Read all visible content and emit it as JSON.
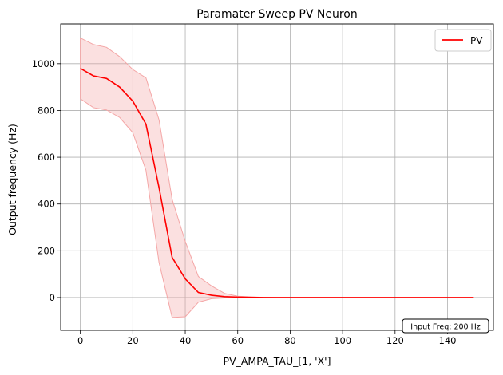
{
  "chart_data": {
    "type": "line",
    "title": "Paramater Sweep PV Neuron",
    "xlabel": "PV_AMPA_TAU_[1, 'X']",
    "ylabel": "Output frequency (Hz)",
    "xlim": [
      -7.5,
      157.5
    ],
    "ylim": [
      -140,
      1170
    ],
    "xticks": [
      0,
      20,
      40,
      60,
      80,
      100,
      120,
      140
    ],
    "yticks": [
      0,
      200,
      400,
      600,
      800,
      1000
    ],
    "grid": true,
    "legend": {
      "position": "top-right"
    },
    "annotation": "Input Freq: 200 Hz",
    "series": [
      {
        "name": "PV",
        "color": "#ff0000",
        "band_color": "#f4a6a6",
        "x": [
          0,
          5,
          10,
          15,
          20,
          25,
          30,
          35,
          40,
          45,
          50,
          55,
          60,
          65,
          70,
          75,
          80,
          85,
          90,
          95,
          100,
          105,
          110,
          115,
          120,
          125,
          130,
          135,
          140,
          145,
          150
        ],
        "y": [
          980,
          948,
          937,
          900,
          840,
          742,
          470,
          172,
          80,
          22,
          10,
          4,
          2,
          1,
          0,
          0,
          0,
          0,
          0,
          0,
          0,
          0,
          0,
          0,
          0,
          0,
          0,
          0,
          0,
          0,
          0
        ],
        "upper": [
          1110,
          1082,
          1070,
          1030,
          975,
          940,
          760,
          420,
          240,
          90,
          50,
          18,
          6,
          3,
          1,
          0,
          0,
          0,
          0,
          0,
          0,
          0,
          0,
          0,
          0,
          0,
          0,
          0,
          0,
          0,
          0
        ],
        "lower": [
          850,
          812,
          802,
          770,
          705,
          545,
          150,
          -85,
          -82,
          -20,
          -5,
          -2,
          0,
          0,
          0,
          0,
          0,
          0,
          0,
          0,
          0,
          0,
          0,
          0,
          0,
          0,
          0,
          0,
          0,
          0,
          0
        ]
      }
    ]
  }
}
